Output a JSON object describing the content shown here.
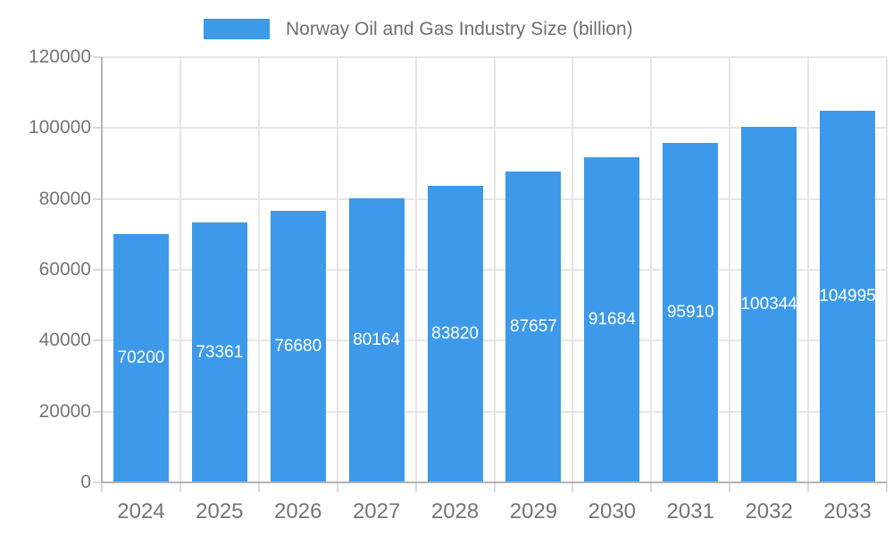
{
  "chart_data": {
    "type": "bar",
    "title": "Norway Oil and Gas Industry Size (billion)",
    "legend": {
      "position": "top",
      "label": "Norway Oil and Gas Industry Size (billion)"
    },
    "categories": [
      "2024",
      "2025",
      "2026",
      "2027",
      "2028",
      "2029",
      "2030",
      "2031",
      "2032",
      "2033"
    ],
    "values": [
      70200,
      73361,
      76680,
      80164,
      83820,
      87657,
      91684,
      95910,
      100344,
      104995
    ],
    "bar_labels": [
      "70200",
      "73361",
      "76680",
      "80164",
      "83820",
      "87657",
      "91684",
      "95910",
      "100344",
      "104995"
    ],
    "xlabel": "",
    "ylabel": "",
    "ylim": [
      0,
      120000
    ],
    "yticks": [
      0,
      20000,
      40000,
      60000,
      80000,
      100000,
      120000
    ],
    "ytick_labels": [
      "0",
      "20000",
      "40000",
      "60000",
      "80000",
      "100000",
      "120000"
    ],
    "grid": "both",
    "colors": {
      "bar": "#3D9AEA",
      "bar_label": "#FFFFFF",
      "axis_text": "#757575",
      "gridline": "#E6E6E6",
      "axis_line": "#B3B3B3",
      "tick": "#D9D9D9",
      "legend_text": "#6F6F6F"
    }
  }
}
